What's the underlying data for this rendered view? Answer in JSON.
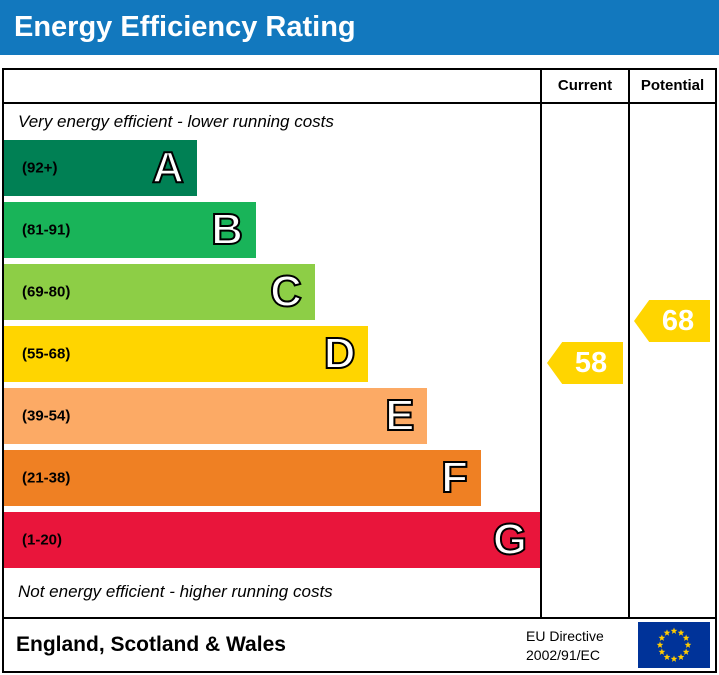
{
  "title": "Energy Efficiency Rating",
  "columns": {
    "current": "Current",
    "potential": "Potential"
  },
  "top_note": "Very energy efficient - lower running costs",
  "bottom_note": "Not energy efficient - higher running costs",
  "ratings": {
    "current": "58",
    "potential": "68"
  },
  "footer": {
    "region": "England, Scotland & Wales",
    "directive_line1": "EU Directive",
    "directive_line2": "2002/91/EC"
  },
  "colors": {
    "header_bg": "#1278be",
    "arrow": "#ffd500",
    "eu_blue": "#003399",
    "eu_star": "#ffcc00"
  },
  "chart_data": {
    "type": "bar",
    "title": "Energy Efficiency Rating",
    "legend_position": "none",
    "grid": false,
    "bands": [
      {
        "letter": "A",
        "range": "(92+)",
        "color": "#008054",
        "width_pct": 36
      },
      {
        "letter": "B",
        "range": "(81-91)",
        "color": "#19b459",
        "width_pct": 47
      },
      {
        "letter": "C",
        "range": "(69-80)",
        "color": "#8dce46",
        "width_pct": 58
      },
      {
        "letter": "D",
        "range": "(55-68)",
        "color": "#ffd500",
        "width_pct": 68
      },
      {
        "letter": "E",
        "range": "(39-54)",
        "color": "#fcaa65",
        "width_pct": 79
      },
      {
        "letter": "F",
        "range": "(21-38)",
        "color": "#ef8023",
        "width_pct": 89
      },
      {
        "letter": "G",
        "range": "(1-20)",
        "color": "#e9153b",
        "width_pct": 100
      }
    ],
    "current": {
      "value": 58,
      "band": "D"
    },
    "potential": {
      "value": 68,
      "band": "D"
    }
  }
}
